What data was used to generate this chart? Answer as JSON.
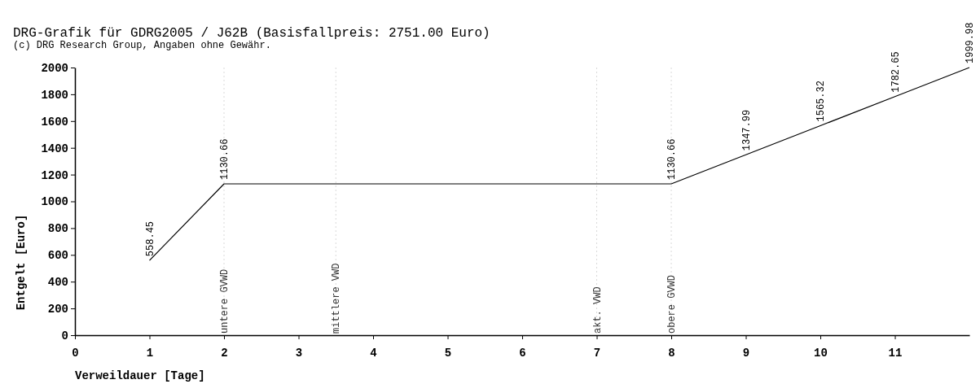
{
  "chart_data": {
    "type": "line",
    "title": "DRG-Grafik für GDRG2005 / J62B (Basisfallpreis: 2751.00 Euro)",
    "subtitle": "(c) DRG Research Group, Angaben ohne Gewähr.",
    "xlabel": "Verweildauer [Tage]",
    "ylabel": "Entgelt [Euro]",
    "x": [
      1,
      2,
      8,
      9,
      10,
      11,
      12
    ],
    "series": [
      {
        "color": "#000000",
        "values": [
          558.45,
          1130.66,
          1130.66,
          1347.99,
          1565.32,
          1782.65,
          1999.98
        ]
      }
    ],
    "data_labels": true,
    "grid": false,
    "marker": "none",
    "line_style": "solid",
    "xlim": [
      0,
      12
    ],
    "xticks": [
      0,
      1,
      2,
      3,
      4,
      5,
      6,
      7,
      8,
      9,
      10,
      11
    ],
    "ylim": [
      0,
      2000
    ],
    "yticks": [
      0,
      200,
      400,
      600,
      800,
      1000,
      1200,
      1400,
      1600,
      1800,
      2000
    ],
    "ref_lines": [
      {
        "axis": "x",
        "value": 2,
        "label": "untere GVWD",
        "color": "#d9d9d9",
        "line_style": "dotted"
      },
      {
        "axis": "x",
        "value": 3.5,
        "label": "mittlere VWD",
        "color": "#d9d9d9",
        "line_style": "dotted"
      },
      {
        "axis": "x",
        "value": 7,
        "label": "akt. VWD",
        "color": "#d9d9d9",
        "line_style": "dotted"
      },
      {
        "axis": "x",
        "value": 8,
        "label": "obere GVWD",
        "color": "#d9d9d9",
        "line_style": "dotted"
      }
    ]
  }
}
